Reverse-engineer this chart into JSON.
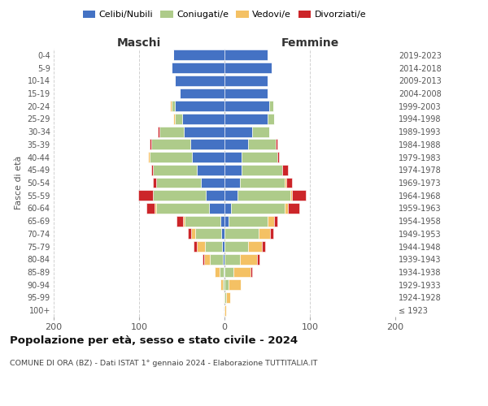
{
  "age_groups": [
    "100+",
    "95-99",
    "90-94",
    "85-89",
    "80-84",
    "75-79",
    "70-74",
    "65-69",
    "60-64",
    "55-59",
    "50-54",
    "45-49",
    "40-44",
    "35-39",
    "30-34",
    "25-29",
    "20-24",
    "15-19",
    "10-14",
    "5-9",
    "0-4"
  ],
  "birth_years": [
    "≤ 1923",
    "1924-1928",
    "1929-1933",
    "1934-1938",
    "1939-1943",
    "1944-1948",
    "1949-1953",
    "1954-1958",
    "1959-1963",
    "1964-1968",
    "1969-1973",
    "1974-1978",
    "1979-1983",
    "1984-1988",
    "1989-1993",
    "1994-1998",
    "1999-2003",
    "2004-2008",
    "2009-2013",
    "2014-2018",
    "2019-2023"
  ],
  "colors": {
    "celibi": "#4472C4",
    "coniugati": "#AECB8A",
    "vedovi": "#F4C164",
    "divorziati": "#CC2529"
  },
  "males": {
    "celibi": [
      0,
      0,
      0,
      1,
      2,
      3,
      4,
      5,
      18,
      22,
      28,
      32,
      38,
      40,
      48,
      50,
      58,
      52,
      58,
      62,
      60
    ],
    "coniugati": [
      0,
      0,
      2,
      5,
      15,
      20,
      30,
      42,
      62,
      62,
      52,
      52,
      50,
      46,
      28,
      8,
      4,
      0,
      0,
      0,
      0
    ],
    "vedovi": [
      0,
      1,
      3,
      5,
      7,
      9,
      5,
      2,
      2,
      0,
      0,
      0,
      2,
      0,
      0,
      2,
      2,
      0,
      0,
      0,
      0
    ],
    "divorziati": [
      0,
      0,
      0,
      0,
      2,
      4,
      4,
      7,
      9,
      17,
      4,
      2,
      0,
      2,
      2,
      0,
      0,
      0,
      0,
      0,
      0
    ]
  },
  "females": {
    "celibi": [
      0,
      0,
      0,
      0,
      0,
      0,
      0,
      5,
      8,
      15,
      18,
      20,
      20,
      28,
      32,
      50,
      52,
      50,
      50,
      55,
      50
    ],
    "coniugati": [
      0,
      2,
      5,
      10,
      18,
      28,
      40,
      45,
      62,
      62,
      52,
      48,
      42,
      32,
      20,
      8,
      5,
      0,
      0,
      0,
      0
    ],
    "vedovi": [
      2,
      5,
      14,
      20,
      20,
      16,
      13,
      8,
      4,
      2,
      2,
      0,
      0,
      0,
      0,
      0,
      0,
      0,
      0,
      0,
      0
    ],
    "divorziati": [
      0,
      0,
      0,
      2,
      3,
      4,
      4,
      4,
      14,
      16,
      7,
      6,
      2,
      2,
      0,
      0,
      0,
      0,
      0,
      0,
      0
    ]
  },
  "title": "Popolazione per età, sesso e stato civile - 2024",
  "subtitle": "COMUNE DI ORA (BZ) - Dati ISTAT 1° gennaio 2024 - Elaborazione TUTTITALIA.IT",
  "label_maschi": "Maschi",
  "label_femmine": "Femmine",
  "ylabel_left": "Fasce di età",
  "xlim": 200,
  "legend_labels": [
    "Celibi/Nubili",
    "Coniugati/e",
    "Vedovi/e",
    "Divorziati/e"
  ],
  "bg_color": "#FFFFFF",
  "grid_color": "#CCCCCC"
}
